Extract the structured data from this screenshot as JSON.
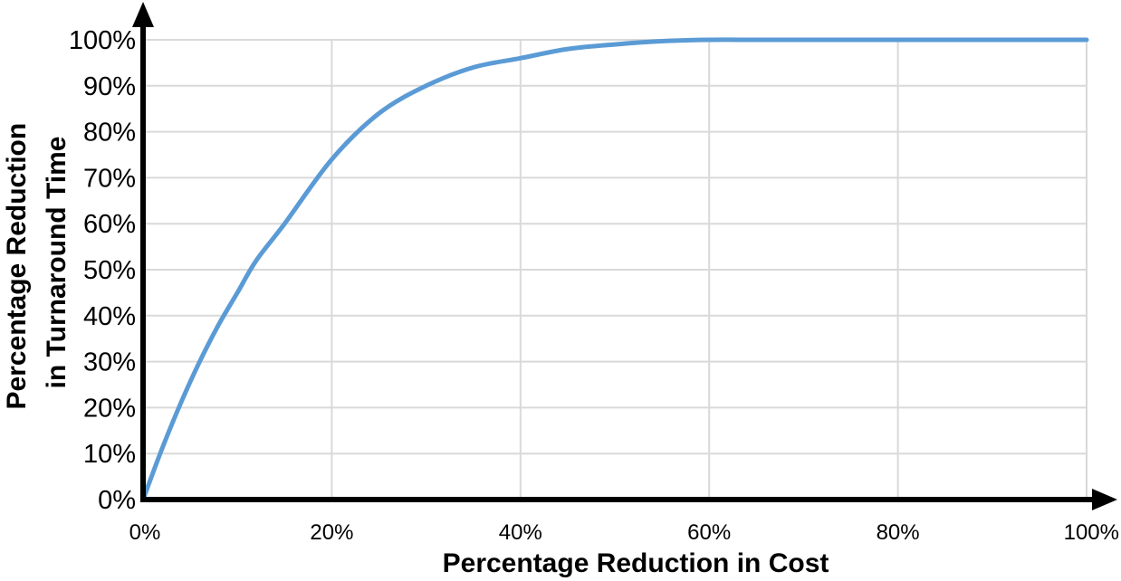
{
  "chart_data": {
    "type": "line",
    "xlabel": "Percentage Reduction in Cost",
    "ylabel_lines": [
      "Percentage Reduction",
      "in Turnaround Time"
    ],
    "xlim": [
      0,
      100
    ],
    "ylim": [
      0,
      100
    ],
    "x_ticks": [
      "0%",
      "20%",
      "40%",
      "60%",
      "80%",
      "100%"
    ],
    "y_ticks": [
      "0%",
      "10%",
      "20%",
      "30%",
      "40%",
      "50%",
      "60%",
      "70%",
      "80%",
      "90%",
      "100%"
    ],
    "grid": true,
    "legend": "none",
    "series": [
      {
        "color": "#5b9bd5",
        "x": [
          0,
          2,
          4,
          6,
          8,
          10,
          12,
          15,
          20,
          25,
          30,
          35,
          40,
          45,
          50,
          55,
          60,
          65,
          70,
          80,
          90,
          100
        ],
        "y": [
          0,
          11,
          21,
          30,
          38,
          45,
          52,
          60,
          74,
          84,
          90,
          94,
          96,
          98,
          99,
          99.7,
          100,
          100,
          100,
          100,
          100,
          100
        ]
      }
    ]
  }
}
